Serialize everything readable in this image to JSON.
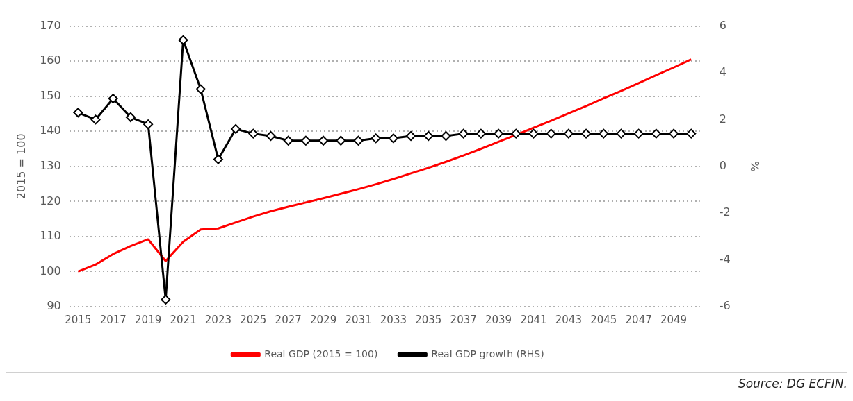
{
  "chart_data": {
    "type": "line",
    "categories": [
      "2015",
      null,
      "2017",
      null,
      "2019",
      null,
      "2021",
      null,
      "2023",
      null,
      "2025",
      null,
      "2027",
      null,
      "2029",
      null,
      "2031",
      null,
      "2033",
      null,
      "2035",
      null,
      "2037",
      null,
      "2039",
      null,
      "2041",
      null,
      "2043",
      null,
      "2045",
      null,
      "2047",
      null,
      "2049",
      null
    ],
    "series": [
      {
        "name": "Real GDP (2015 = 100)",
        "color": "#ff0000",
        "marker": "none",
        "values": [
          100,
          102,
          105,
          107.3,
          109.2,
          103,
          108.5,
          112,
          112.3,
          114,
          115.7,
          117.2,
          118.5,
          119.7,
          120.9,
          122.2,
          123.5,
          124.9,
          126.4,
          128,
          129.6,
          131.3,
          133.1,
          135,
          137,
          139,
          141,
          143,
          145.1,
          147.2,
          149.4,
          151.5,
          153.7,
          156,
          158.2,
          160.5
        ]
      },
      {
        "name": "Real GDP growth (RHS)",
        "color": "#000000",
        "axis": "y2",
        "marker": "diamond",
        "values": [
          2.3,
          2.0,
          2.9,
          2.1,
          1.8,
          -5.7,
          5.4,
          3.3,
          0.3,
          1.6,
          1.4,
          1.3,
          1.1,
          1.1,
          1.1,
          1.1,
          1.1,
          1.2,
          1.2,
          1.3,
          1.3,
          1.3,
          1.4,
          1.4,
          1.4,
          1.4,
          1.4,
          1.4,
          1.4,
          1.4,
          1.4,
          1.4,
          1.4,
          1.4,
          1.4,
          1.4
        ]
      }
    ],
    "ylabel": "2015 = 100",
    "y2label": "%",
    "ylim": [
      90,
      170
    ],
    "yticks": [
      90,
      100,
      110,
      120,
      130,
      140,
      150,
      160,
      170
    ],
    "y2lim": [
      -6,
      6
    ],
    "y2ticks": [
      -6,
      -4,
      -2,
      0,
      2,
      4,
      6
    ],
    "grid": "y",
    "legend": "bottom",
    "annotations": [
      "Source: DG ECFIN."
    ]
  }
}
